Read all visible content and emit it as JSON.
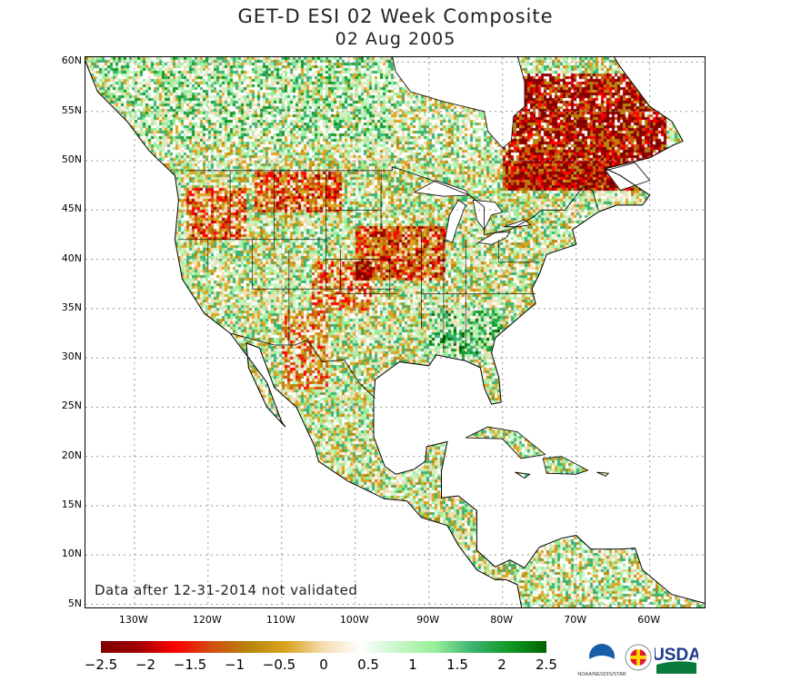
{
  "title": "GET-D ESI 02 Week Composite",
  "date": "02 Aug 2005",
  "note": "Data after 12-31-2014 not validated",
  "lat_labels": [
    "60N",
    "55N",
    "50N",
    "45N",
    "40N",
    "35N",
    "30N",
    "25N",
    "20N",
    "15N",
    "10N",
    "5N"
  ],
  "lon_labels": [
    "130W",
    "120W",
    "110W",
    "100W",
    "90W",
    "80W",
    "70W",
    "60W"
  ],
  "colorbar": {
    "labels": [
      "−2.5",
      "−2",
      "−1.5",
      "−1",
      "−0.5",
      "0",
      "0.5",
      "1",
      "1.5",
      "2",
      "2.5"
    ],
    "range": [
      -2.5,
      2.5
    ],
    "colors": [
      "#800000",
      "#a00000",
      "#ff0000",
      "#d05010",
      "#b8860b",
      "#daa520",
      "#f5deb3",
      "#ffffff",
      "#c8f5c8",
      "#98f098",
      "#3cb371",
      "#129a26",
      "#006400"
    ]
  },
  "logos": {
    "noaa": "NOAA/NESDIS/STAR",
    "umd": "UNIVERSITY OF MARYLAND",
    "usda": "USDA"
  }
}
